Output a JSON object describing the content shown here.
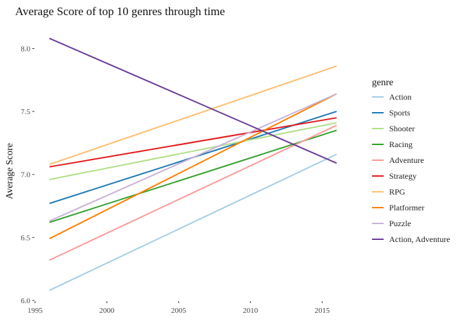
{
  "chart_data": {
    "type": "line",
    "title": "Average Score of top 10 genres through time",
    "xlabel": "",
    "ylabel": "Average Score",
    "xlim": [
      1995,
      2016.5
    ],
    "ylim": [
      6.0,
      8.15
    ],
    "x_ticks": [
      1995,
      2000,
      2005,
      2010,
      2015
    ],
    "y_ticks": [
      6.0,
      6.5,
      7.0,
      7.5,
      8.0
    ],
    "y_tick_labels": [
      "6.0",
      "6.5",
      "7.0",
      "7.5",
      "8.0"
    ],
    "grid": false,
    "legend_title": "genre",
    "legend_position": "right",
    "x": [
      1996,
      2016
    ],
    "series": [
      {
        "name": "Action",
        "color": "#A6CEE3",
        "values": [
          6.08,
          7.16
        ]
      },
      {
        "name": "Sports",
        "color": "#1F78B4",
        "values": [
          6.77,
          7.5
        ]
      },
      {
        "name": "Shooter",
        "color": "#B2DF8A",
        "values": [
          6.96,
          7.41
        ]
      },
      {
        "name": "Racing",
        "color": "#33A02C",
        "values": [
          6.62,
          7.35
        ]
      },
      {
        "name": "Adventure",
        "color": "#FB9A99",
        "values": [
          6.32,
          7.39
        ]
      },
      {
        "name": "Strategy",
        "color": "#E31A1C",
        "values": [
          7.06,
          7.45
        ]
      },
      {
        "name": "RPG",
        "color": "#FDBF6F",
        "values": [
          7.08,
          7.86
        ]
      },
      {
        "name": "Platformer",
        "color": "#FF7F00",
        "values": [
          6.49,
          7.64
        ]
      },
      {
        "name": "Puzzle",
        "color": "#CAB2D6",
        "values": [
          6.63,
          7.64
        ]
      },
      {
        "name": "Action, Adventure",
        "color": "#6A3D9A",
        "values": [
          8.08,
          7.09
        ]
      }
    ]
  }
}
